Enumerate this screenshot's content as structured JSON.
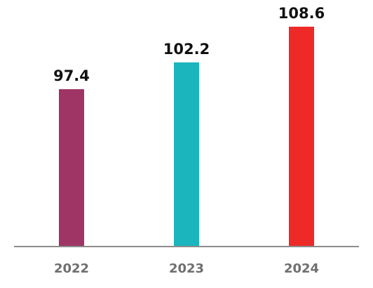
{
  "chart_data": {
    "type": "bar",
    "categories": [
      "2022",
      "2023",
      "2024"
    ],
    "values": [
      97.4,
      102.2,
      108.6
    ],
    "data_labels": [
      "97.4",
      "102.2",
      "108.6"
    ],
    "colors": [
      "#9e3565",
      "#1ab5bd",
      "#ed2a28"
    ],
    "axis_color": "#8c8c8c",
    "title": "",
    "xlabel": "",
    "ylabel": "",
    "ylim": [
      69.3,
      108.6
    ],
    "grid": false,
    "legend": "none"
  }
}
